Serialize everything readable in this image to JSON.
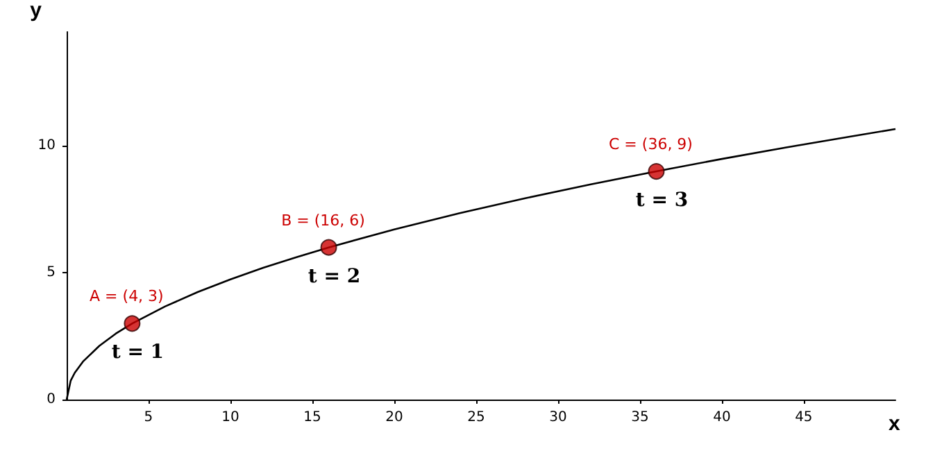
{
  "chart_data": {
    "type": "line",
    "xlabel": "x",
    "ylabel": "y",
    "xlim": [
      0,
      50.6
    ],
    "ylim": [
      0,
      14.5
    ],
    "xticks": [
      5,
      10,
      15,
      20,
      25,
      30,
      35,
      40,
      45
    ],
    "yticks": [
      0,
      5,
      10
    ],
    "grid": false,
    "series": [
      {
        "color": "#000000",
        "marker": "none",
        "x": [
          0,
          0.25,
          0.5,
          1,
          2,
          3,
          4,
          6,
          8,
          10,
          12,
          14,
          16,
          20,
          24,
          28,
          32,
          36,
          40,
          44,
          48,
          50.6
        ],
        "values": [
          0,
          0.75,
          1.06,
          1.5,
          2.12,
          2.6,
          3,
          3.67,
          4.24,
          4.74,
          5.2,
          5.61,
          6,
          6.71,
          7.35,
          7.94,
          8.49,
          9,
          9.49,
          9.95,
          10.39,
          10.67
        ]
      },
      {
        "type": "scatter",
        "color": "#cc0000",
        "marker": "circle",
        "x": [
          4,
          16,
          36
        ],
        "values": [
          3,
          6,
          9
        ]
      }
    ],
    "annotations": [
      {
        "text": "A = (4, 3)",
        "x": 4,
        "y": 3
      },
      {
        "text": "t = 1",
        "x": 4,
        "y": 3
      },
      {
        "text": "B = (16, 6)",
        "x": 16,
        "y": 6
      },
      {
        "text": "t = 2",
        "x": 16,
        "y": 6
      },
      {
        "text": "C = (36, 9)",
        "x": 36,
        "y": 9
      },
      {
        "text": "t = 3",
        "x": 36,
        "y": 9
      }
    ]
  }
}
